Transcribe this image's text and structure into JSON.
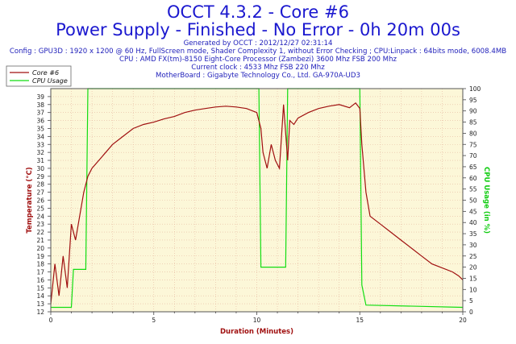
{
  "title": "OCCT 4.3.2 - Core #6",
  "subtitle": "Power Supply - Finished - No Error - 0h 20m 00s",
  "info_lines": [
    "Generated by OCCT : 2012/12/27 02:31:14",
    "Config : GPU3D : 1920 x 1200 @ 60 Hz, FullScreen mode, Shader Complexity 1, without Error Checking ; CPU:Linpack : 64bits mode, 6008.4MB",
    "CPU : AMD FX(tm)-8150 Eight-Core Processor (Zambezi) 3600 Mhz FSB 200 Mhz",
    "Current clock : 4533 Mhz FSB 220 Mhz",
    "MotherBoard : Gigabyte Technology Co., Ltd. GA-970A-UD3"
  ],
  "colors": {
    "title": "#1b18cf",
    "info": "#2222bb",
    "plot_bg": "#fcf7d8",
    "grid": "#e6b8a0",
    "core": "#a01010",
    "cpu": "#11dd11",
    "axis_left": "#a01010",
    "axis_right": "#11cc11"
  },
  "chart_data": {
    "type": "line",
    "xlabel": "Duration (Minutes)",
    "ylabel": "Temperature (°C)",
    "y2label": "CPU Usage (in %)",
    "xlim": [
      0,
      20
    ],
    "ylim": [
      12,
      40
    ],
    "y2lim": [
      0,
      100
    ],
    "x_ticks": [
      "0",
      "5",
      "10",
      "15",
      "20"
    ],
    "y_ticks": [
      "12",
      "13",
      "14",
      "15",
      "16",
      "17",
      "18",
      "19",
      "20",
      "21",
      "22",
      "23",
      "24",
      "25",
      "26",
      "27",
      "28",
      "29",
      "30",
      "31",
      "32",
      "33",
      "34",
      "35",
      "36",
      "37",
      "38",
      "39"
    ],
    "y2_ticks": [
      "0",
      "5",
      "10",
      "15",
      "20",
      "25",
      "30",
      "35",
      "40",
      "45",
      "50",
      "55",
      "60",
      "65",
      "70",
      "75",
      "80",
      "85",
      "90",
      "95",
      "100"
    ],
    "grid": true,
    "legend_position": "top-left",
    "series": [
      {
        "name": "Core #6",
        "axis": "left",
        "x": [
          0,
          0.2,
          0.4,
          0.6,
          0.8,
          1.0,
          1.2,
          1.4,
          1.6,
          1.8,
          2.0,
          2.5,
          3.0,
          3.5,
          4.0,
          4.5,
          5.0,
          5.5,
          6.0,
          6.5,
          7.0,
          7.5,
          8.0,
          8.5,
          9.0,
          9.5,
          10.0,
          10.2,
          10.3,
          10.5,
          10.7,
          10.9,
          11.1,
          11.3,
          11.5,
          11.6,
          11.8,
          12.0,
          12.5,
          13.0,
          13.5,
          14.0,
          14.5,
          14.8,
          15.0,
          15.1,
          15.3,
          15.5,
          16.0,
          16.5,
          17.0,
          17.5,
          18.0,
          18.5,
          19.0,
          19.5,
          19.8,
          20.0
        ],
        "values": [
          13,
          18,
          14,
          19,
          15,
          23,
          21,
          24,
          27,
          29,
          30,
          31.5,
          33,
          34,
          35,
          35.5,
          35.8,
          36.2,
          36.5,
          37,
          37.3,
          37.5,
          37.7,
          37.8,
          37.7,
          37.5,
          37,
          35,
          32,
          30,
          33,
          31,
          30,
          38,
          31,
          36,
          35.5,
          36.3,
          37,
          37.5,
          37.8,
          38,
          37.6,
          38.2,
          37.5,
          33,
          27,
          24,
          23,
          22,
          21,
          20,
          19,
          18,
          17.5,
          17,
          16.5,
          16
        ]
      },
      {
        "name": "CPU Usage",
        "axis": "right",
        "x": [
          0,
          0.9,
          1.0,
          1.1,
          1.7,
          1.8,
          10.1,
          10.2,
          11.4,
          11.5,
          15.0,
          15.1,
          15.3,
          20.0
        ],
        "values": [
          2,
          2,
          2,
          19,
          19,
          100,
          100,
          20,
          20,
          100,
          100,
          12,
          3,
          2
        ]
      }
    ]
  }
}
